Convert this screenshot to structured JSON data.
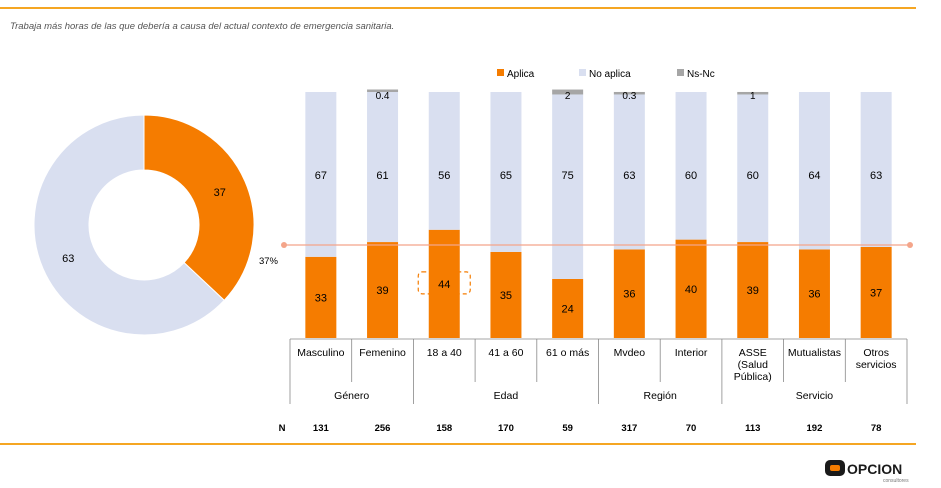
{
  "subtitle": "Trabaja más horas de las que debería a causa del actual contexto de emergencia sanitaria.",
  "colors": {
    "aplica": "#f57c00",
    "no_aplica": "#d9dff0",
    "nsnc": "#a6a6a6",
    "ref_line": "#f4a58a",
    "rule": "#f5a623"
  },
  "chart_data": [
    {
      "type": "pie",
      "donut": true,
      "slices": [
        {
          "label": "Aplica",
          "value": 37
        },
        {
          "label": "No aplica",
          "value": 63
        }
      ]
    },
    {
      "type": "bar",
      "stacked": true,
      "legend": {
        "position": "top",
        "entries": [
          "Aplica",
          "No aplica",
          "Ns-Nc"
        ]
      },
      "categories": [
        "Masculino",
        "Femenino",
        "18 a 40",
        "41 a 60",
        "61 o más",
        "Mvdeo",
        "Interior",
        "ASSE (Salud Pública)",
        "Mutualistas",
        "Otros servicios"
      ],
      "category_lines": [
        [
          "Masculino"
        ],
        [
          "Femenino"
        ],
        [
          "18 a 40"
        ],
        [
          "41 a 60"
        ],
        [
          "61 o más"
        ],
        [
          "Mvdeo"
        ],
        [
          "Interior"
        ],
        [
          "ASSE",
          "(Salud",
          "Pública)"
        ],
        [
          "Mutualistas"
        ],
        [
          "Otros",
          "servicios"
        ]
      ],
      "groups": [
        {
          "label": "Género",
          "span": 2
        },
        {
          "label": "Edad",
          "span": 3
        },
        {
          "label": "Región",
          "span": 2
        },
        {
          "label": "Servicio",
          "span": 3
        }
      ],
      "series": [
        {
          "name": "Aplica",
          "values": [
            33,
            39,
            44,
            35,
            24,
            36,
            40,
            39,
            36,
            37
          ]
        },
        {
          "name": "No aplica",
          "values": [
            67,
            61,
            56,
            65,
            75,
            63,
            60,
            60,
            64,
            63
          ]
        },
        {
          "name": "Ns-Nc",
          "values": [
            0,
            0.4,
            0,
            0,
            2,
            0.3,
            0,
            1,
            0,
            0
          ]
        }
      ],
      "labels": {
        "aplica": [
          "33",
          "39",
          "44",
          "35",
          "24",
          "36",
          "40",
          "39",
          "36",
          "37"
        ],
        "no_aplica": [
          "67",
          "61",
          "56",
          "65",
          "75",
          "63",
          "60",
          "60",
          "64",
          "63"
        ],
        "nsnc": [
          "",
          "0.4",
          "",
          "",
          "2",
          "0.3",
          "",
          "1",
          "",
          ""
        ]
      },
      "highlight_index": 2,
      "reference_line": {
        "value": 37,
        "label": "37%"
      },
      "n_label": "N",
      "n_values": [
        "131",
        "256",
        "158",
        "170",
        "59",
        "317",
        "70",
        "113",
        "192",
        "78"
      ],
      "ylim": [
        0,
        100
      ]
    }
  ],
  "logo": {
    "text": "OPCION",
    "subtext": "consultores"
  }
}
